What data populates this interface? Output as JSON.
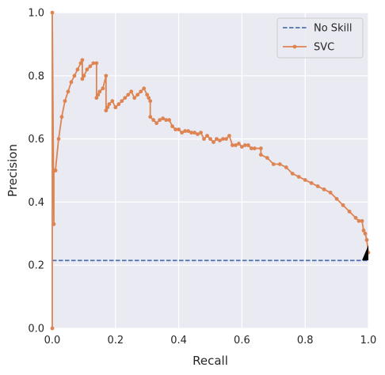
{
  "chart_data": {
    "type": "line",
    "title": "",
    "xlabel": "Recall",
    "ylabel": "Precision",
    "xlim": [
      0,
      1
    ],
    "ylim": [
      0,
      1
    ],
    "xticks": [
      "0.0",
      "0.2",
      "0.4",
      "0.6",
      "0.8",
      "1.0"
    ],
    "yticks": [
      "0.0",
      "0.2",
      "0.4",
      "0.6",
      "0.8",
      "1.0"
    ],
    "grid": true,
    "legend": "top-right",
    "colors": {
      "background": "#eaeaf2",
      "grid": "#ffffff",
      "no_skill": "#4c72b0",
      "svc": "#dd8452"
    },
    "series": [
      {
        "name": "No Skill",
        "style": "dashed",
        "x": [
          0,
          1
        ],
        "y": [
          0.215,
          0.215
        ]
      },
      {
        "name": "SVC",
        "style": "line-dot",
        "x": [
          0.0,
          0.0,
          0.005,
          0.005,
          0.01,
          0.01,
          0.02,
          0.03,
          0.04,
          0.05,
          0.06,
          0.07,
          0.08,
          0.09,
          0.095,
          0.095,
          0.1,
          0.11,
          0.12,
          0.13,
          0.14,
          0.14,
          0.145,
          0.15,
          0.16,
          0.17,
          0.17,
          0.175,
          0.18,
          0.19,
          0.2,
          0.21,
          0.22,
          0.23,
          0.24,
          0.25,
          0.26,
          0.27,
          0.28,
          0.29,
          0.3,
          0.305,
          0.31,
          0.31,
          0.32,
          0.33,
          0.34,
          0.35,
          0.36,
          0.37,
          0.38,
          0.39,
          0.4,
          0.41,
          0.42,
          0.43,
          0.44,
          0.45,
          0.46,
          0.47,
          0.48,
          0.49,
          0.5,
          0.51,
          0.52,
          0.53,
          0.54,
          0.55,
          0.56,
          0.57,
          0.58,
          0.59,
          0.6,
          0.61,
          0.62,
          0.63,
          0.64,
          0.66,
          0.66,
          0.68,
          0.7,
          0.72,
          0.74,
          0.76,
          0.78,
          0.8,
          0.82,
          0.84,
          0.86,
          0.88,
          0.9,
          0.92,
          0.94,
          0.96,
          0.97,
          0.98,
          0.985,
          0.99,
          0.995,
          1.0
        ],
        "y": [
          0.0,
          1.0,
          0.33,
          0.5,
          0.5,
          0.5,
          0.6,
          0.67,
          0.72,
          0.75,
          0.78,
          0.8,
          0.82,
          0.84,
          0.85,
          0.79,
          0.8,
          0.82,
          0.83,
          0.84,
          0.84,
          0.73,
          0.74,
          0.75,
          0.76,
          0.8,
          0.69,
          0.7,
          0.71,
          0.72,
          0.7,
          0.71,
          0.72,
          0.73,
          0.74,
          0.75,
          0.73,
          0.74,
          0.75,
          0.76,
          0.74,
          0.73,
          0.72,
          0.67,
          0.66,
          0.65,
          0.66,
          0.665,
          0.66,
          0.66,
          0.64,
          0.63,
          0.63,
          0.62,
          0.625,
          0.625,
          0.62,
          0.62,
          0.615,
          0.62,
          0.6,
          0.61,
          0.6,
          0.59,
          0.6,
          0.595,
          0.6,
          0.6,
          0.61,
          0.58,
          0.58,
          0.585,
          0.575,
          0.58,
          0.58,
          0.57,
          0.57,
          0.57,
          0.55,
          0.54,
          0.52,
          0.52,
          0.51,
          0.49,
          0.48,
          0.47,
          0.46,
          0.45,
          0.44,
          0.43,
          0.41,
          0.39,
          0.37,
          0.35,
          0.34,
          0.34,
          0.31,
          0.3,
          0.28,
          0.24
        ]
      }
    ]
  }
}
